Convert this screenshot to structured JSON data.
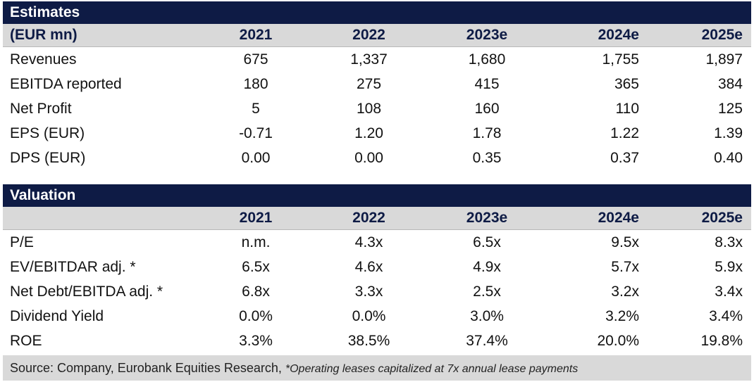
{
  "estimates": {
    "title": "Estimates",
    "header": [
      "(EUR mn)",
      "2021",
      "2022",
      "2023e",
      "2024e",
      "2025e"
    ],
    "rows": [
      [
        "Revenues",
        "675",
        "1,337",
        "1,680",
        "1,755",
        "1,897"
      ],
      [
        "EBITDA reported",
        "180",
        "275",
        "415",
        "365",
        "384"
      ],
      [
        "Net Profit",
        "5",
        "108",
        "160",
        "110",
        "125"
      ],
      [
        "EPS (EUR)",
        "-0.71",
        "1.20",
        "1.78",
        "1.22",
        "1.39"
      ],
      [
        "DPS (EUR)",
        "0.00",
        "0.00",
        "0.35",
        "0.37",
        "0.40"
      ]
    ]
  },
  "valuation": {
    "title": "Valuation",
    "header": [
      "",
      "2021",
      "2022",
      "2023e",
      "2024e",
      "2025e"
    ],
    "rows": [
      [
        "P/E",
        "n.m.",
        "4.3x",
        "6.5x",
        "9.5x",
        "8.3x"
      ],
      [
        "EV/EBITDAR adj. *",
        "6.5x",
        "4.6x",
        "4.9x",
        "5.7x",
        "5.9x"
      ],
      [
        "Net Debt/EBITDA adj. *",
        "6.8x",
        "3.3x",
        "2.5x",
        "3.2x",
        "3.4x"
      ],
      [
        "Dividend Yield",
        "0.0%",
        "0.0%",
        "3.0%",
        "3.2%",
        "3.4%"
      ],
      [
        "ROE",
        "3.3%",
        "38.5%",
        "37.4%",
        "20.0%",
        "19.8%"
      ]
    ]
  },
  "source": {
    "text": "Source: Company, Eurobank Equities Research, ",
    "note": "*Operating leases capitalized at 7x annual lease payments"
  },
  "colors": {
    "title_bg": "#0e1b45",
    "header_bg": "#d9d9d9",
    "header_text": "#0e1b45"
  }
}
